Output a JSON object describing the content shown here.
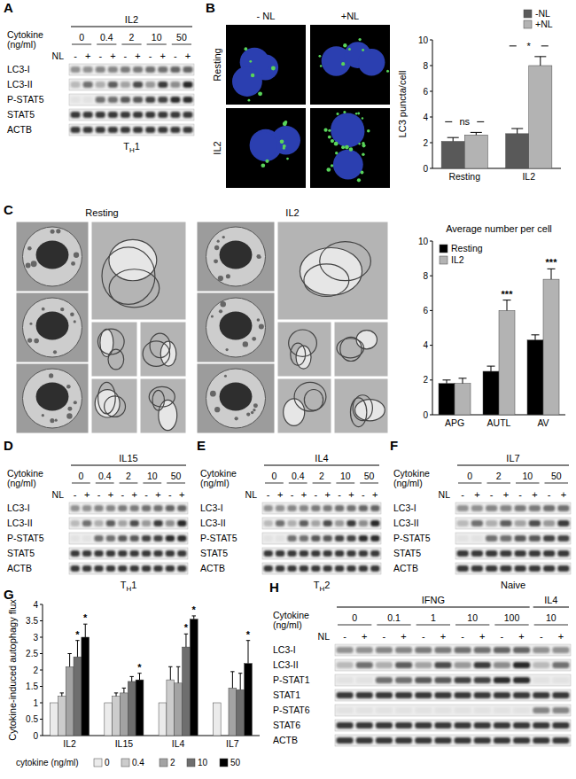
{
  "panels": {
    "A": {
      "label": "A",
      "blot": {
        "groups": [
          {
            "name": "IL2",
            "concentrations": [
              0,
              0.4,
              2,
              10,
              50
            ]
          }
        ],
        "cytokine_label": "Cytokine",
        "unit_label": "(ng/ml)",
        "nl_label": "NL",
        "nl_signs": [
          "-",
          "+"
        ],
        "rows": [
          "LC3-I",
          "LC3-II",
          "P-STAT5",
          "STAT5",
          "ACTB"
        ],
        "footer": "TH1"
      }
    },
    "B": {
      "label": "B",
      "columns": [
        "- NL",
        "+NL"
      ],
      "rows": [
        "Resting",
        "IL2"
      ]
    },
    "C": {
      "label": "C",
      "groups": [
        "Resting",
        "IL2"
      ]
    },
    "D": {
      "label": "D",
      "blot": {
        "groups": [
          {
            "name": "IL15",
            "concentrations": [
              0,
              0.4,
              2,
              10,
              50
            ]
          }
        ],
        "cytokine_label": "Cytokine",
        "unit_label": "(ng/ml)",
        "nl_label": "NL",
        "nl_signs": [
          "-",
          "+"
        ],
        "rows": [
          "LC3-I",
          "LC3-II",
          "P-STAT5",
          "STAT5",
          "ACTB"
        ],
        "footer": "TH1"
      }
    },
    "E": {
      "label": "E",
      "blot": {
        "groups": [
          {
            "name": "IL4",
            "concentrations": [
              0,
              0.4,
              2,
              10,
              50
            ]
          }
        ],
        "cytokine_label": "Cytokine",
        "unit_label": "(ng/ml)",
        "nl_label": "NL",
        "nl_signs": [
          "-",
          "+"
        ],
        "rows": [
          "LC3-I",
          "LC3-II",
          "P-STAT5",
          "STAT5",
          "ACTB"
        ],
        "footer": "TH2"
      }
    },
    "F": {
      "label": "F",
      "blot": {
        "groups": [
          {
            "name": "IL7",
            "concentrations": [
              0,
              2,
              10,
              50
            ]
          }
        ],
        "cytokine_label": "Cytokine",
        "unit_label": "(ng/ml)",
        "nl_label": "NL",
        "nl_signs": [
          "-",
          "+"
        ],
        "rows": [
          "LC3-I",
          "LC3-II",
          "P-STAT5",
          "STAT5",
          "ACTB"
        ],
        "footer": "Naive"
      }
    },
    "G": {
      "label": "G"
    },
    "H": {
      "label": "H",
      "blot": {
        "groups": [
          {
            "name": "IFNG",
            "concentrations": [
              0,
              0.1,
              1,
              10,
              100
            ]
          },
          {
            "name": "IL4",
            "concentrations": [
              10
            ]
          }
        ],
        "cytokine_label": "Cytokine",
        "unit_label": "(ng/ml)",
        "nl_label": "NL",
        "nl_signs": [
          "-",
          "+"
        ],
        "rows": [
          "LC3-I",
          "LC3-II",
          "P-STAT1",
          "STAT1",
          "P-STAT6",
          "STAT6",
          "ACTB"
        ]
      }
    }
  },
  "chart_data": [
    {
      "type": "bar",
      "ylabel": "LC3 puncta/cell",
      "categories": [
        "Resting",
        "IL2"
      ],
      "annotations": [
        "ns",
        "*"
      ],
      "series": [
        {
          "name": "-NL",
          "color": "#595959",
          "values": [
            2.1,
            2.7
          ],
          "errors": [
            0.3,
            0.4
          ]
        },
        {
          "name": "+NL",
          "color": "#b3b3b3",
          "values": [
            2.6,
            8
          ],
          "errors": [
            0.2,
            0.7
          ]
        }
      ],
      "ylim": [
        0,
        10
      ],
      "yticks": [
        0,
        2,
        4,
        6,
        8,
        10
      ],
      "legend": "top-right"
    },
    {
      "type": "bar",
      "title": "Average number per cell",
      "categories": [
        "APG",
        "AUTL",
        "AV"
      ],
      "series": [
        {
          "name": "Resting",
          "color": "#000000",
          "values": [
            1.8,
            2.5,
            4.3
          ],
          "errors": [
            0.2,
            0.3,
            0.3
          ]
        },
        {
          "name": "IL2",
          "color": "#b3b3b3",
          "values": [
            1.8,
            6,
            7.8
          ],
          "errors": [
            0.3,
            0.6,
            0.6
          ],
          "significance": [
            null,
            "***",
            "***"
          ]
        }
      ],
      "ylim": [
        0,
        10
      ],
      "yticks": [
        0,
        2,
        4,
        6,
        8,
        10
      ],
      "legend": "top-left"
    },
    {
      "type": "bar",
      "ylabel": "Cytokine-induced autophagy flux",
      "categories": [
        "IL2",
        "IL15",
        "IL4",
        "IL7"
      ],
      "legend_title": "cytokine (ng/ml)",
      "series": [
        {
          "name": "0",
          "color": "#ebebeb",
          "values": [
            1,
            1,
            1,
            1
          ],
          "errors": [
            0,
            0,
            0,
            0
          ]
        },
        {
          "name": "0.4",
          "color": "#cccccc",
          "values": [
            1.2,
            1.2,
            1.7,
            null
          ],
          "errors": [
            0.1,
            0.1,
            0.4,
            null
          ]
        },
        {
          "name": "2",
          "color": "#a3a3a3",
          "values": [
            2.1,
            1.3,
            1.6,
            1.45
          ],
          "errors": [
            0.4,
            0.15,
            0.5,
            0.5
          ]
        },
        {
          "name": "10",
          "color": "#6e6e6e",
          "values": [
            2.4,
            1.65,
            2.7,
            1.4
          ],
          "errors": [
            0.5,
            0.15,
            0.4,
            0.5
          ],
          "significance": [
            "*",
            null,
            "*",
            null
          ]
        },
        {
          "name": "50",
          "color": "#000000",
          "values": [
            3,
            1.7,
            3.55,
            2.2
          ],
          "errors": [
            0.4,
            0.2,
            0.1,
            0.7
          ],
          "significance": [
            "*",
            "*",
            "*",
            "*"
          ]
        }
      ],
      "ylim": [
        0,
        4
      ],
      "yticks": [
        0,
        0.5,
        1,
        1.5,
        2,
        2.5,
        3,
        3.5,
        4
      ],
      "legend": "bottom"
    }
  ]
}
